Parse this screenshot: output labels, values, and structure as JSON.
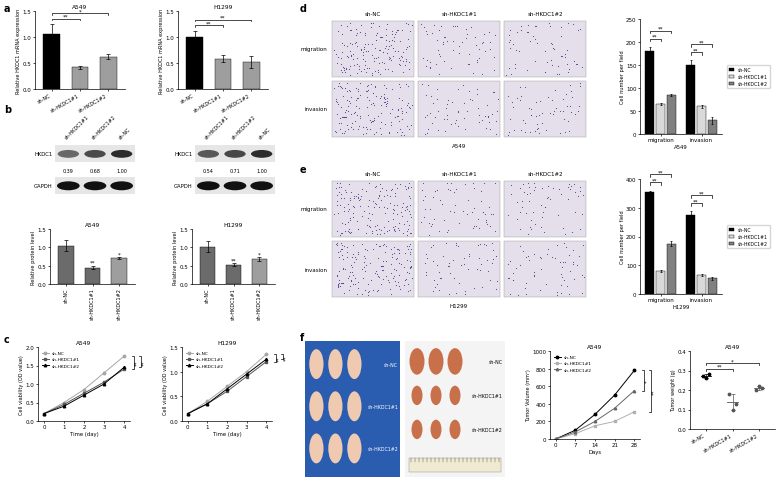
{
  "panel_labels": [
    "a",
    "b",
    "c",
    "d",
    "e",
    "f"
  ],
  "chart_data": [
    {
      "type": "bar",
      "title": "A549",
      "y_label": "Relative HKDC1 mRNA expression",
      "categories": [
        "sh-NC",
        "sh-HKDC1#1",
        "sh-HKDC1#2"
      ],
      "values": [
        1.05,
        0.42,
        0.62
      ],
      "error": [
        0.2,
        0.03,
        0.05
      ],
      "colors": [
        "#000000",
        "#9e9e9e",
        "#9e9e9e"
      ],
      "ylim": [
        0.0,
        1.5
      ],
      "yticks": [
        0.0,
        0.5,
        1.0,
        1.5
      ],
      "grid": false,
      "annotations": [
        {
          "text": "**",
          "categories": [
            "sh-NC",
            "sh-HKDC1#1"
          ]
        },
        {
          "text": "*",
          "categories": [
            "sh-NC",
            "sh-HKDC1#2"
          ]
        }
      ]
    },
    {
      "type": "bar",
      "title": "H1299",
      "y_label": "Relative HKDC1 mRNA expression",
      "categories": [
        "sh-NC",
        "sh-HKDC1#1",
        "sh-HKDC1#2"
      ],
      "values": [
        1.0,
        0.58,
        0.52
      ],
      "error": [
        0.12,
        0.07,
        0.12
      ],
      "colors": [
        "#000000",
        "#9e9e9e",
        "#9e9e9e"
      ],
      "ylim": [
        0.0,
        1.5
      ],
      "yticks": [
        0.0,
        0.5,
        1.0,
        1.5
      ],
      "grid": false,
      "annotations": [
        {
          "text": "**",
          "categories": [
            "sh-NC",
            "sh-HKDC1#1"
          ]
        },
        {
          "text": "**",
          "categories": [
            "sh-NC",
            "sh-HKDC1#2"
          ]
        }
      ]
    },
    {
      "type": "bar",
      "title": "A549",
      "y_label": "Relative protein level",
      "categories": [
        "sh-NC",
        "sh-HKDC1#1",
        "sh-HKDC1#2"
      ],
      "values": [
        1.05,
        0.45,
        0.7
      ],
      "error": [
        0.15,
        0.05,
        0.03
      ],
      "colors": [
        "#6b6b6b",
        "#6b6b6b",
        "#9e9e9e"
      ],
      "ylim": [
        0.0,
        1.5
      ],
      "yticks": [
        0.0,
        0.5,
        1.0,
        1.5
      ],
      "grid": false,
      "annotations": [
        {
          "text": "**",
          "category": "sh-HKDC1#1"
        },
        {
          "text": "*",
          "category": "sh-HKDC1#2"
        }
      ]
    },
    {
      "type": "bar",
      "title": "H1299",
      "y_label": "Relative protein level",
      "categories": [
        "sh-NC",
        "sh-HKDC1#1",
        "sh-HKDC1#2"
      ],
      "values": [
        1.02,
        0.52,
        0.68
      ],
      "error": [
        0.15,
        0.04,
        0.05
      ],
      "colors": [
        "#6b6b6b",
        "#6b6b6b",
        "#9e9e9e"
      ],
      "ylim": [
        0.0,
        1.5
      ],
      "yticks": [
        0.0,
        0.5,
        1.0,
        1.5
      ],
      "grid": false,
      "annotations": [
        {
          "text": "**",
          "category": "sh-HKDC1#1"
        },
        {
          "text": "*",
          "category": "sh-HKDC1#2"
        }
      ]
    },
    {
      "type": "line",
      "title": "A549",
      "x_label": "Time (day)",
      "y_label": "Cell viability (OD value)",
      "x": [
        0,
        1,
        2,
        3,
        4
      ],
      "xlim": [
        -0.3,
        4.3
      ],
      "xticks": [
        0,
        1,
        2,
        3,
        4
      ],
      "ylim": [
        0.0,
        2.0
      ],
      "yticks": [
        0.0,
        0.5,
        1.0,
        1.5,
        2.0
      ],
      "legend": "upper left",
      "grid": false,
      "series": [
        {
          "name": "sh-NC",
          "color": "#a6a6a6",
          "marker": "circle",
          "values": [
            0.2,
            0.5,
            0.85,
            1.3,
            1.75
          ]
        },
        {
          "name": "sh-HKDC1#1",
          "color": "#555555",
          "marker": "square",
          "values": [
            0.2,
            0.45,
            0.75,
            1.05,
            1.4
          ]
        },
        {
          "name": "sh-HKDC1#2",
          "color": "#000000",
          "marker": "triangle",
          "values": [
            0.2,
            0.4,
            0.7,
            1.0,
            1.45
          ]
        }
      ],
      "annotations": [
        {
          "text": "**",
          "series": [
            "sh-NC",
            "sh-HKDC1#1"
          ]
        },
        {
          "text": "**",
          "series": [
            "sh-NC",
            "sh-HKDC1#2"
          ]
        }
      ]
    },
    {
      "type": "line",
      "title": "H1299",
      "x_label": "Time (day)",
      "y_label": "Cell viability (OD value)",
      "x": [
        0,
        1,
        2,
        3,
        4
      ],
      "xlim": [
        -0.3,
        4.3
      ],
      "xticks": [
        0,
        1,
        2,
        3,
        4
      ],
      "ylim": [
        0.0,
        1.5
      ],
      "yticks": [
        0.0,
        0.5,
        1.0,
        1.5
      ],
      "legend": "upper left",
      "grid": false,
      "series": [
        {
          "name": "sh-NC",
          "color": "#a6a6a6",
          "marker": "circle",
          "values": [
            0.15,
            0.4,
            0.7,
            1.0,
            1.35
          ]
        },
        {
          "name": "sh-HKDC1#1",
          "color": "#555555",
          "marker": "square",
          "values": [
            0.15,
            0.35,
            0.6,
            0.9,
            1.2
          ]
        },
        {
          "name": "sh-HKDC1#2",
          "color": "#000000",
          "marker": "triangle",
          "values": [
            0.15,
            0.35,
            0.65,
            0.95,
            1.25
          ]
        }
      ],
      "annotations": [
        {
          "text": "**",
          "series": [
            "sh-NC",
            "sh-HKDC1#1"
          ]
        },
        {
          "text": "**",
          "series": [
            "sh-NC",
            "sh-HKDC1#2"
          ]
        }
      ]
    },
    {
      "type": "grouped_bar",
      "x_label": "A549",
      "y_label": "Cell number per field",
      "categories": [
        "migration",
        "invasion"
      ],
      "ylim": [
        0,
        250
      ],
      "yticks": [
        0,
        50,
        100,
        150,
        200,
        250
      ],
      "legend": "right",
      "grid": false,
      "series": [
        {
          "name": "sh-NC",
          "color": "#000000",
          "values": [
            180,
            150
          ],
          "error": [
            10,
            10
          ]
        },
        {
          "name": "sh-HKDC1#1",
          "color": "#d9d9d9",
          "values": [
            65,
            60
          ],
          "error": [
            3,
            4
          ]
        },
        {
          "name": "sh-HKDC1#2",
          "color": "#808080",
          "values": [
            85,
            30
          ],
          "error": [
            3,
            8
          ]
        }
      ],
      "annotations": [
        {
          "text": "**",
          "category": "migration",
          "series": [
            "sh-NC",
            "sh-HKDC1#1"
          ]
        },
        {
          "text": "**",
          "category": "migration",
          "series": [
            "sh-NC",
            "sh-HKDC1#2"
          ]
        },
        {
          "text": "**",
          "category": "invasion",
          "series": [
            "sh-NC",
            "sh-HKDC1#1"
          ]
        },
        {
          "text": "**",
          "category": "invasion",
          "series": [
            "sh-NC",
            "sh-HKDC1#2"
          ]
        }
      ]
    },
    {
      "type": "grouped_bar",
      "x_label": "H1299",
      "y_label": "Cell number per field",
      "categories": [
        "migration",
        "invasion"
      ],
      "ylim": [
        0,
        400
      ],
      "yticks": [
        0,
        100,
        200,
        300,
        400
      ],
      "legend": "right",
      "grid": false,
      "series": [
        {
          "name": "sh-NC",
          "color": "#000000",
          "values": [
            355,
            275
          ],
          "error": [
            5,
            12
          ]
        },
        {
          "name": "sh-HKDC1#1",
          "color": "#d9d9d9",
          "values": [
            80,
            65
          ],
          "error": [
            3,
            3
          ]
        },
        {
          "name": "sh-HKDC1#2",
          "color": "#808080",
          "values": [
            175,
            55
          ],
          "error": [
            8,
            5
          ]
        }
      ],
      "annotations": [
        {
          "text": "**",
          "category": "migration",
          "series": [
            "sh-NC",
            "sh-HKDC1#1"
          ]
        },
        {
          "text": "**",
          "category": "migration",
          "series": [
            "sh-NC",
            "sh-HKDC1#2"
          ]
        },
        {
          "text": "**",
          "category": "invasion",
          "series": [
            "sh-NC",
            "sh-HKDC1#1"
          ]
        },
        {
          "text": "**",
          "category": "invasion",
          "series": [
            "sh-NC",
            "sh-HKDC1#2"
          ]
        }
      ]
    },
    {
      "type": "line",
      "title": "A549",
      "x_label": "Days",
      "y_label": "Tumor Volume (mm³)",
      "x": [
        0,
        7,
        14,
        21,
        28
      ],
      "xlim": [
        -2,
        30
      ],
      "xticks": [
        0,
        7,
        14,
        21,
        28
      ],
      "ylim": [
        0,
        1000
      ],
      "yticks": [
        0,
        200,
        400,
        600,
        800,
        1000
      ],
      "legend": "upper left",
      "grid": false,
      "series": [
        {
          "name": "sh-NC",
          "color": "#000000",
          "marker": "circle",
          "values": [
            0,
            100,
            280,
            500,
            780
          ]
        },
        {
          "name": "sh-HKDC1#1",
          "color": "#b0b0b0",
          "marker": "square",
          "values": [
            0,
            60,
            150,
            200,
            310
          ]
        },
        {
          "name": "sh-HKDC1#2",
          "color": "#666666",
          "marker": "triangle",
          "values": [
            0,
            80,
            200,
            350,
            550
          ]
        }
      ],
      "annotations": [
        {
          "text": "*",
          "series": [
            "sh-NC",
            "sh-HKDC1#2"
          ]
        },
        {
          "text": "**",
          "series": [
            "sh-NC",
            "sh-HKDC1#1"
          ]
        }
      ]
    },
    {
      "type": "dot",
      "title": "A549",
      "y_label": "Tumor weight (g)",
      "categories": [
        "sh-NC",
        "sh-HKDC1#1",
        "sh-HKDC1#2"
      ],
      "points": [
        [
          0.27,
          0.26,
          0.28
        ],
        [
          0.18,
          0.1,
          0.13
        ],
        [
          0.2,
          0.22,
          0.21
        ]
      ],
      "colors": [
        "#000000",
        "#555555",
        "#555555"
      ],
      "ylim": [
        0.0,
        0.4
      ],
      "yticks": [
        0.0,
        0.1,
        0.2,
        0.3,
        0.4
      ],
      "grid": false,
      "annotations": [
        {
          "text": "**",
          "categories": [
            "sh-NC",
            "sh-HKDC1#1"
          ]
        },
        {
          "text": "*",
          "categories": [
            "sh-NC",
            "sh-HKDC1#2"
          ]
        }
      ]
    }
  ],
  "blots": [
    {
      "lanes": [
        "sh-HKDC1#1",
        "sh-HKDC1#2",
        "sh-NC"
      ],
      "rows": [
        "HKDC1",
        "GAPDH"
      ],
      "band_values": [
        0.39,
        0.68,
        1.0
      ],
      "band_value_labels": [
        "0.39",
        "0.68",
        "1.00"
      ]
    },
    {
      "lanes": [
        "sh-HKDC1#1",
        "sh-HKDC1#2",
        "sh-NC"
      ],
      "rows": [
        "HKDC1",
        "GAPDH"
      ],
      "band_values": [
        0.54,
        0.71,
        1.0
      ],
      "band_value_labels": [
        "0.54",
        "0.71",
        "1.00"
      ]
    }
  ],
  "micrographs": [
    {
      "columns": [
        "sh-NC",
        "sh-HKDC1#1",
        "sh-HKDC1#2"
      ],
      "rows": [
        "migration",
        "invasion"
      ],
      "caption": "A549"
    },
    {
      "columns": [
        "sh-NC",
        "sh-HKDC1#1",
        "sh-HKDC1#2"
      ],
      "rows": [
        "migration",
        "invasion"
      ],
      "caption": "H1299"
    }
  ],
  "photos": [
    {
      "labels": [
        "sh-NC",
        "sh-HKDC1#1",
        "sh-HKDC1#2"
      ]
    },
    {
      "labels": [
        "sh-NC",
        "sh-HKDC1#1",
        "sh-HKDC1#2"
      ]
    }
  ]
}
